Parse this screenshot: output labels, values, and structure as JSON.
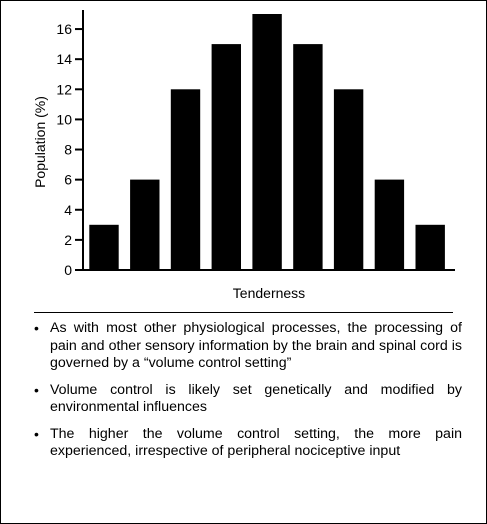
{
  "chart_data": {
    "type": "bar",
    "categories": [
      "",
      "",
      "",
      "",
      "",
      "",
      "",
      "",
      ""
    ],
    "values": [
      3,
      6,
      12,
      15,
      17,
      15,
      12,
      6,
      3
    ],
    "xlabel": "Tenderness",
    "ylabel": "Population (%)",
    "ylim": [
      0,
      17
    ],
    "yticks": [
      0,
      2,
      4,
      6,
      8,
      10,
      12,
      14,
      16
    ],
    "bar_color": "#000000",
    "grid": false
  },
  "bullets": [
    "As with most other physiological processes, the processing of pain and other sensory information by the brain and spinal cord is governed by a “volume control setting”",
    "Volume control is likely set genetically and modified by environmental influences",
    "The higher the volume control setting, the more pain experienced, irrespective of peripheral nociceptive input"
  ],
  "bullet_symbol": "•"
}
